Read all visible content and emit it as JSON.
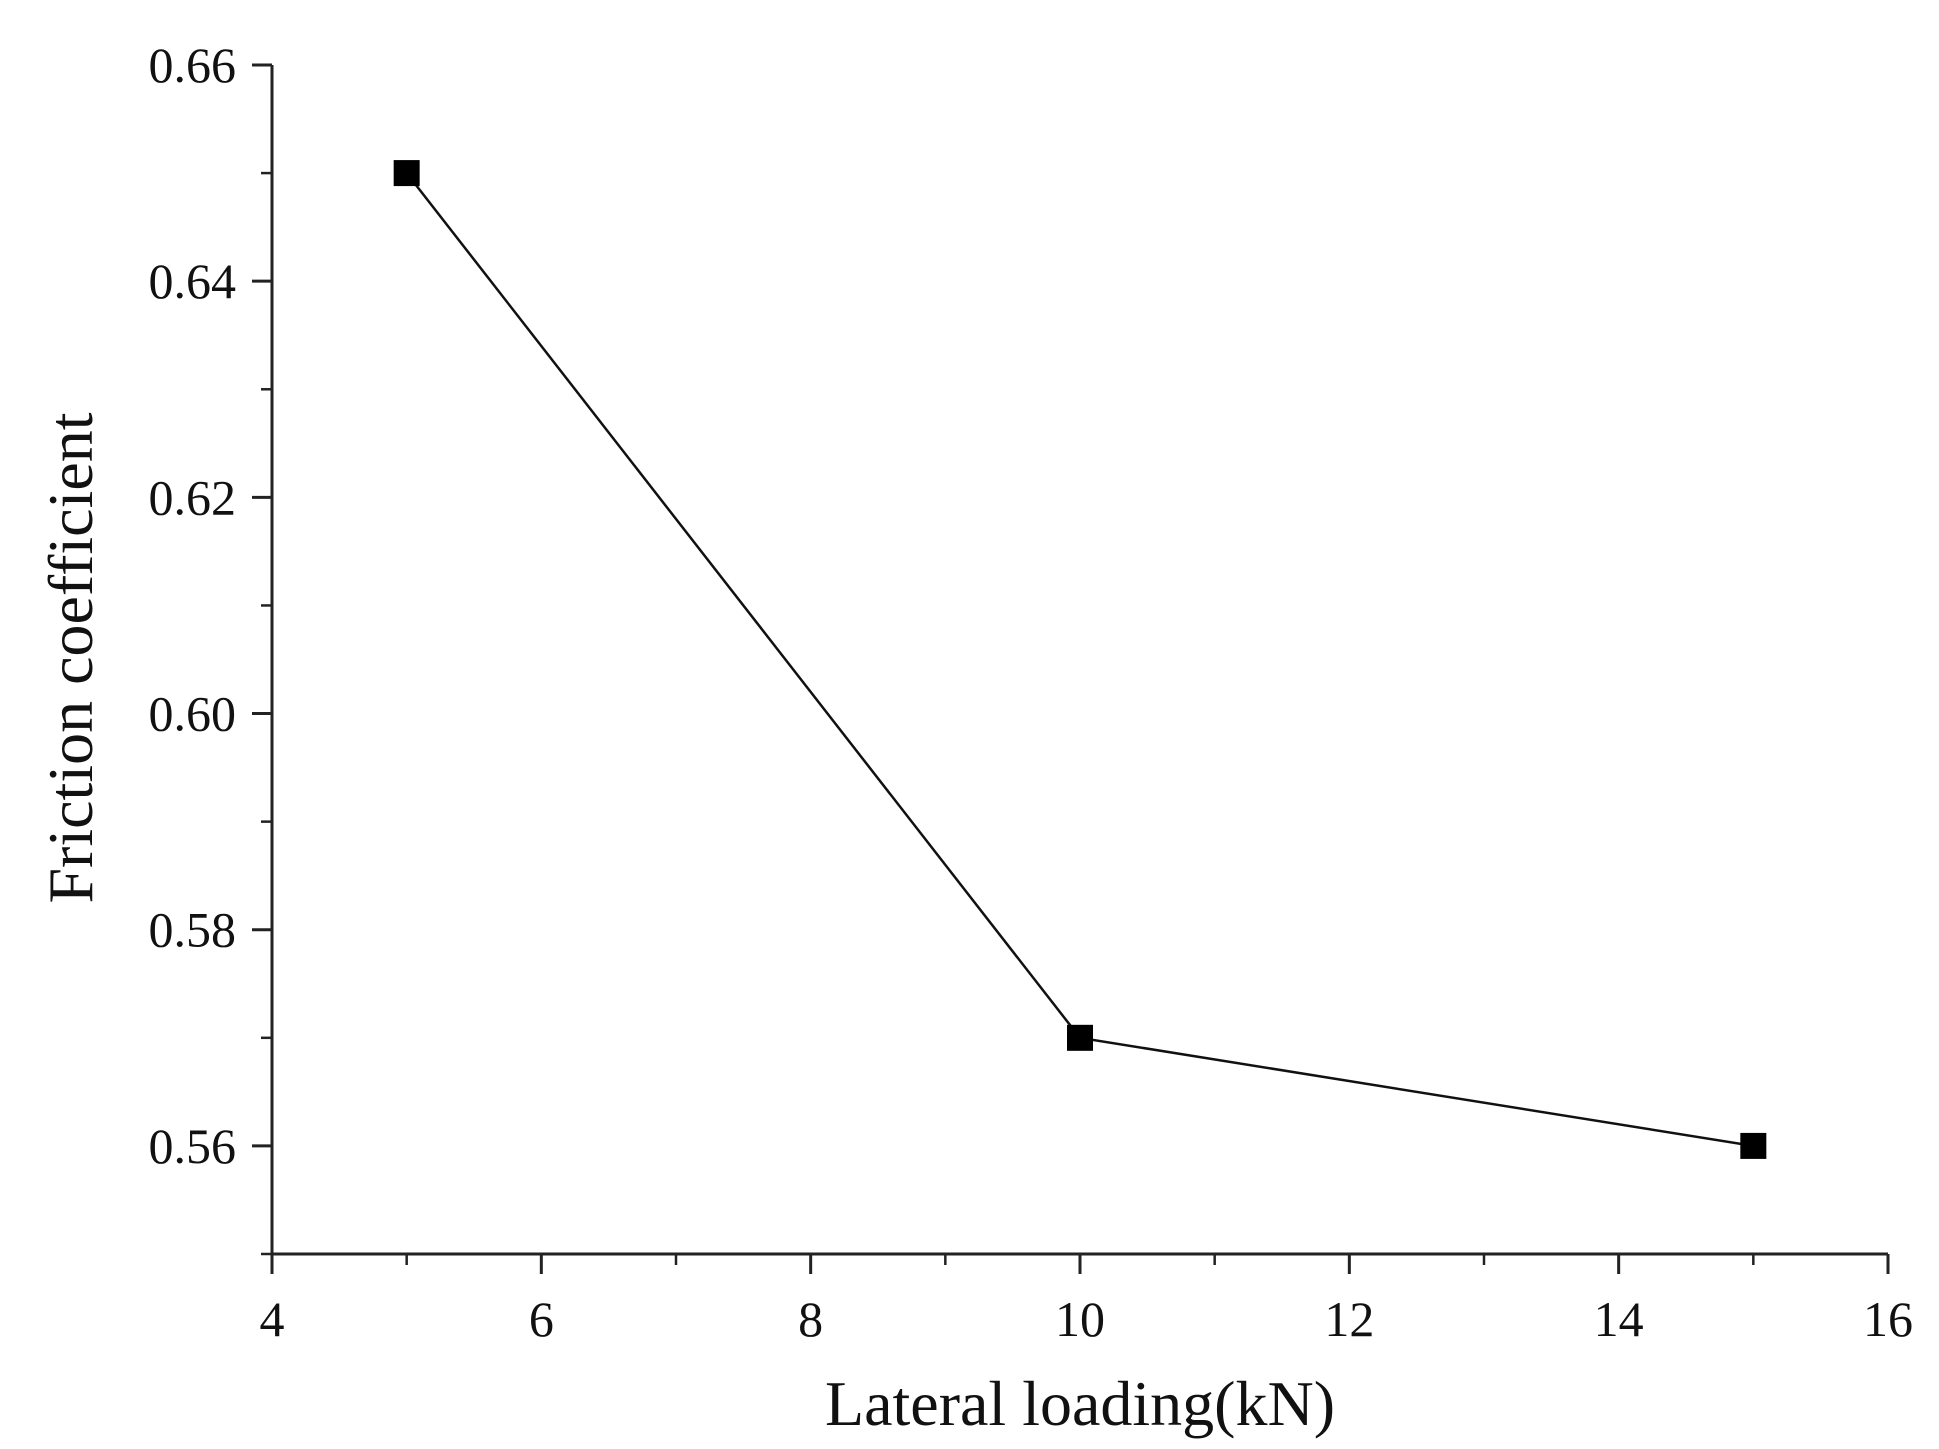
{
  "chart_data": {
    "type": "line",
    "title": "",
    "xlabel": "Lateral loading(kN)",
    "ylabel": "Friction coefficient",
    "xlim": [
      4,
      16
    ],
    "ylim": [
      0.55,
      0.66
    ],
    "x_ticks": [
      4,
      6,
      8,
      10,
      12,
      14,
      16
    ],
    "x_tick_labels": [
      "4",
      "6",
      "8",
      "10",
      "12",
      "14",
      "16"
    ],
    "y_ticks": [
      0.56,
      0.58,
      0.6,
      0.62,
      0.64,
      0.66
    ],
    "y_tick_labels": [
      "0.56",
      "0.58",
      "0.60",
      "0.62",
      "0.64",
      "0.66"
    ],
    "grid": false,
    "legend": "none",
    "marker": "square",
    "colors": {
      "line": "#111111",
      "marker": "#000000",
      "axis": "#222222"
    },
    "series": [
      {
        "x": [
          5,
          10,
          15
        ],
        "y": [
          0.65,
          0.57,
          0.56
        ]
      }
    ]
  }
}
